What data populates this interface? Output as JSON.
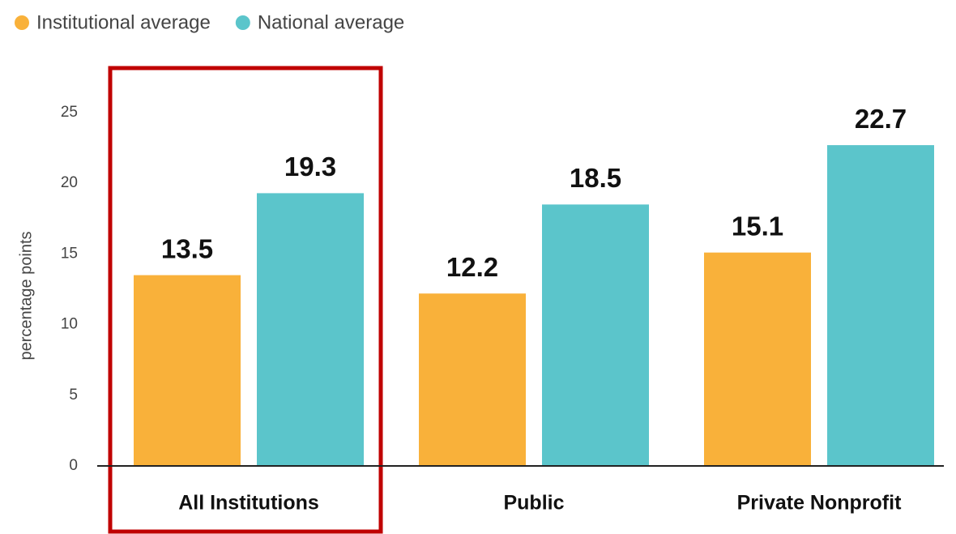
{
  "chart_data": {
    "type": "bar",
    "y_axis_label": "percentage points",
    "categories": [
      "All Institutions",
      "Public",
      "Private Nonprofit"
    ],
    "series": [
      {
        "name": "Institutional average",
        "color": "#f9b13a",
        "values": [
          13.5,
          12.2,
          15.1
        ]
      },
      {
        "name": "National average",
        "color": "#5bc5cb",
        "values": [
          19.3,
          18.5,
          22.7
        ]
      }
    ],
    "ylim": [
      0,
      25
    ],
    "yticks": [
      0,
      5,
      10,
      15,
      20,
      25
    ],
    "grid": false,
    "legend": "top-left"
  }
}
